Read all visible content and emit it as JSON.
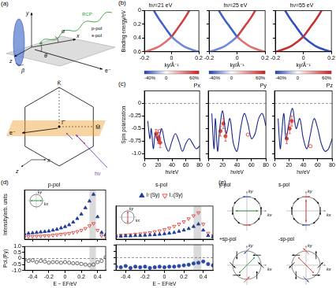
{
  "figure": {
    "panel_labels": [
      "(a)",
      "(b)",
      "(c)",
      "(d)",
      "(e)"
    ],
    "geometry_labels": {
      "y": "y",
      "z": "z",
      "x": "x",
      "theta": "θ",
      "beta": "β",
      "alpha": "α",
      "rcp": "RCP",
      "ppol": "p-pol",
      "spol": "s-pol",
      "electron": "e⁻"
    },
    "bz_labels": {
      "K": "K̄",
      "M": "M̄",
      "G": "Γ̄",
      "electron": "e⁻",
      "z": "z",
      "x": "x",
      "photon": "hν"
    },
    "colorbar": {
      "range": [
        -40,
        60
      ],
      "ticks": [
        {
          "value": -40,
          "label": "-40%"
        },
        0,
        {
          "value": 60,
          "label": "60%"
        }
      ]
    },
    "spin_textures": [
      "p-pol",
      "s-pol",
      "+sp-pol",
      "-sp-pol"
    ],
    "k_axes": {
      "ky": "ky",
      "kx": "kx"
    }
  },
  "chart_data": [
    {
      "type": "line",
      "title": "hν=21 eV",
      "xlabel": "ky/Å⁻¹",
      "ylabel": "Binding energy/eV",
      "xlim": [
        -0.2,
        0.2
      ],
      "xticks": [
        -0.2,
        0,
        0.2
      ],
      "ylim": [
        0.6,
        0
      ],
      "yticks": [
        0,
        0.2,
        0.4,
        0.6
      ],
      "series": [
        {
          "color": "#4060c8",
          "x": [
            -0.13,
            -0.1,
            -0.065,
            -0.03,
            0
          ],
          "values": [
            0,
            0.1,
            0.2,
            0.3,
            0.38
          ]
        },
        {
          "color": "#d04040",
          "x": [
            0.13,
            0.1,
            0.065,
            0.03,
            0
          ],
          "values": [
            0,
            0.1,
            0.2,
            0.3,
            0.38
          ]
        },
        {
          "color": "#e07070",
          "x": [
            0,
            -0.04,
            -0.09,
            -0.15,
            -0.2
          ],
          "values": [
            0.38,
            0.45,
            0.52,
            0.57,
            0.6
          ]
        },
        {
          "color": "#7088d8",
          "x": [
            0,
            0.04,
            0.09,
            0.15,
            0.2
          ],
          "values": [
            0.38,
            0.45,
            0.52,
            0.57,
            0.6
          ]
        }
      ]
    },
    {
      "type": "line",
      "title": "hν=25 eV",
      "xlabel": "ky/Å⁻¹",
      "tick_labels": "x",
      "xlim": [
        -0.2,
        0.2
      ],
      "xticks": [
        -0.2,
        0,
        0.2
      ],
      "ylim": [
        0.6,
        0
      ],
      "yticks": [
        0,
        0.2,
        0.4,
        0.6
      ],
      "series": [
        {
          "color": "#4060c8",
          "x": [
            -0.13,
            -0.1,
            -0.065,
            -0.03,
            0
          ],
          "values": [
            0,
            0.1,
            0.2,
            0.3,
            0.38
          ]
        },
        {
          "color": "#d04040",
          "x": [
            0.13,
            0.1,
            0.065,
            0.03,
            0
          ],
          "values": [
            0,
            0.1,
            0.2,
            0.3,
            0.38
          ]
        },
        {
          "color": "#7088d8",
          "x": [
            0,
            -0.04,
            -0.09,
            -0.15,
            -0.2
          ],
          "values": [
            0.38,
            0.45,
            0.52,
            0.57,
            0.6
          ]
        },
        {
          "color": "#e07070",
          "x": [
            0,
            0.04,
            0.09,
            0.15,
            0.2
          ],
          "values": [
            0.38,
            0.45,
            0.52,
            0.57,
            0.6
          ]
        }
      ]
    },
    {
      "type": "line",
      "title": "hν=55 eV",
      "xlabel": "ky/Å⁻¹",
      "tick_labels": "x",
      "xlim": [
        -0.2,
        0.2
      ],
      "xticks": [
        -0.2,
        0,
        0.2
      ],
      "ylim": [
        0.6,
        0
      ],
      "yticks": [
        0,
        0.2,
        0.4,
        0.6
      ],
      "series": [
        {
          "color": "#3050c0",
          "x": [
            -0.13,
            -0.1,
            -0.065,
            -0.03,
            0
          ],
          "values": [
            0,
            0.1,
            0.2,
            0.3,
            0.38
          ]
        },
        {
          "color": "#c83030",
          "x": [
            0.13,
            0.1,
            0.065,
            0.03,
            0
          ],
          "values": [
            0,
            0.1,
            0.2,
            0.3,
            0.38
          ]
        },
        {
          "color": "#c83030",
          "x": [
            0,
            -0.04,
            -0.09,
            -0.15,
            -0.2
          ],
          "values": [
            0.38,
            0.45,
            0.52,
            0.57,
            0.6
          ]
        },
        {
          "color": "#3050c0",
          "x": [
            0,
            0.04,
            0.09,
            0.15,
            0.2
          ],
          "values": [
            0.38,
            0.45,
            0.52,
            0.57,
            0.6
          ]
        }
      ]
    },
    {
      "type": "line",
      "title": "Px",
      "xlabel": "hν/eV",
      "ylabel": "Spin polarization",
      "xlim": [
        0,
        80
      ],
      "xticks": [
        0,
        20,
        40,
        60,
        80
      ],
      "ylim": [
        -1.1,
        0.25
      ],
      "yticks": [
        {
          "value": -1,
          "label": "-1.0"
        },
        -0.75,
        -0.5,
        -0.25,
        0
      ],
      "reference_line": 0,
      "series": [
        {
          "type": "line",
          "color": "#1c2a8c",
          "x": [
            5,
            8,
            10,
            13,
            16,
            20,
            25,
            30,
            35,
            40,
            45,
            50,
            55,
            60,
            65,
            70,
            75,
            80
          ],
          "values": [
            -0.35,
            -0.7,
            -0.5,
            -0.9,
            -0.6,
            -0.75,
            -0.5,
            -0.8,
            -0.95,
            -0.75,
            -0.6,
            -0.75,
            -0.95,
            -0.8,
            -0.7,
            -0.8,
            -0.9,
            -0.85
          ]
        },
        {
          "type": "scatter",
          "marker": "circle",
          "color": "#e0413a",
          "x": [
            17,
            20,
            21,
            23
          ],
          "values": [
            -0.6,
            -0.68,
            -0.72,
            -0.78
          ],
          "errors": [
            0.08,
            0.1,
            0.08,
            0.1
          ]
        },
        {
          "type": "scatter",
          "marker": "open_circle",
          "color": "#e0413a",
          "x": [
            22
          ],
          "values": [
            -0.55
          ]
        }
      ]
    },
    {
      "type": "line",
      "title": "Py",
      "xlabel": "hν/eV",
      "tick_labels": "x",
      "xlim": [
        0,
        80
      ],
      "xticks": [
        0,
        20,
        40,
        60,
        80
      ],
      "ylim": [
        -1.1,
        0.25
      ],
      "yticks": [
        {
          "value": -1,
          "label": "-1.0"
        },
        -0.75,
        -0.5,
        -0.25,
        0
      ],
      "reference_line": 0,
      "series": [
        {
          "type": "line",
          "color": "#1c2a8c",
          "x": [
            5,
            8,
            10,
            13,
            16,
            20,
            25,
            30,
            35,
            40,
            45,
            50,
            55,
            60,
            65,
            70,
            75,
            80
          ],
          "values": [
            -0.2,
            -0.9,
            -0.3,
            -0.95,
            -0.5,
            -0.15,
            -0.6,
            -0.3,
            -0.8,
            -0.95,
            -0.5,
            -0.2,
            -0.4,
            -0.7,
            -0.6,
            -0.3,
            -0.2,
            -0.45
          ]
        },
        {
          "type": "scatter",
          "marker": "circle",
          "color": "#e0413a",
          "x": [
            17,
            21,
            24
          ],
          "values": [
            -0.55,
            -0.4,
            -0.65
          ],
          "errors": [
            0.1,
            0.1,
            0.1
          ]
        },
        {
          "type": "scatter",
          "marker": "open_circle",
          "color": "#e0413a",
          "x": [
            55
          ],
          "values": [
            -0.62
          ]
        }
      ]
    },
    {
      "type": "line",
      "title": "Pz",
      "xlabel": "hν/eV",
      "tick_labels": "x",
      "xlim": [
        0,
        80
      ],
      "xticks": [
        0,
        20,
        40,
        60,
        80
      ],
      "ylim": [
        -1.1,
        0.25
      ],
      "yticks": [
        {
          "value": -1,
          "label": "-1.0"
        },
        -0.75,
        -0.5,
        -0.25,
        0
      ],
      "reference_line": 0,
      "series": [
        {
          "type": "line",
          "color": "#1c2a8c",
          "x": [
            5,
            8,
            10,
            13,
            16,
            20,
            25,
            30,
            35,
            40,
            45,
            50,
            55,
            60,
            65,
            70,
            75,
            80
          ],
          "values": [
            -0.3,
            -0.9,
            -0.6,
            -0.2,
            -0.7,
            -0.4,
            -0.1,
            -0.5,
            -0.3,
            -0.7,
            -0.9,
            -0.6,
            -0.3,
            -0.5,
            -0.8,
            -0.95,
            -0.9,
            -0.7
          ]
        },
        {
          "type": "scatter",
          "marker": "circle",
          "color": "#e0413a",
          "x": [
            17,
            21,
            24
          ],
          "values": [
            -0.7,
            -0.5,
            -0.35
          ],
          "errors": [
            0.1,
            0.1,
            0.1
          ]
        },
        {
          "type": "scatter",
          "marker": "open_circle",
          "color": "#e0413a",
          "x": [
            50
          ],
          "values": [
            -0.85
          ]
        }
      ]
    },
    {
      "type": "scatter",
      "title": "p-pol",
      "ylabel": "Intensity/arb. units",
      "tick_labels": false,
      "xlim": [
        -0.5,
        0.5
      ],
      "xticks": [
        -0.4,
        -0.2,
        0,
        0.2,
        0.4
      ],
      "ylim": [
        0,
        1.1
      ],
      "highlight": [
        0.3,
        0.38
      ],
      "x": [
        -0.5,
        -0.45,
        -0.4,
        -0.35,
        -0.3,
        -0.25,
        -0.2,
        -0.15,
        -0.1,
        -0.05,
        0,
        0.05,
        0.1,
        0.15,
        0.2,
        0.25,
        0.3,
        0.35,
        0.4,
        0.45,
        0.5
      ],
      "series": [
        {
          "color": "#1f3d99",
          "marker": "triangle",
          "values": [
            0.12,
            0.13,
            0.14,
            0.15,
            0.16,
            0.17,
            0.18,
            0.2,
            0.22,
            0.25,
            0.28,
            0.32,
            0.38,
            0.46,
            0.56,
            0.7,
            0.85,
            1.0,
            0.5,
            0.15,
            0.1
          ]
        },
        {
          "color": "#e0413a",
          "marker": "triangle_down_open",
          "values": [
            0.05,
            0.06,
            0.06,
            0.07,
            0.07,
            0.08,
            0.08,
            0.09,
            0.1,
            0.11,
            0.12,
            0.13,
            0.15,
            0.17,
            0.2,
            0.24,
            0.3,
            0.35,
            0.2,
            0.08,
            0.06
          ]
        }
      ]
    },
    {
      "type": "scatter",
      "xlabel": "E − EF/eV",
      "ylabel": "Pol.(Py)",
      "xlim": [
        -0.5,
        0.5
      ],
      "xticks": [
        -0.4,
        -0.2,
        0,
        0.2,
        0.4
      ],
      "ylim": [
        -1,
        1
      ],
      "yticks": [
        {
          "value": -1,
          "label": "-1.0"
        },
        -0.5,
        0,
        0.5,
        {
          "value": 1,
          "label": "1.0"
        }
      ],
      "reference_line": 0,
      "highlight": [
        0.3,
        0.38
      ],
      "x": [
        -0.5,
        -0.45,
        -0.4,
        -0.35,
        -0.3,
        -0.25,
        -0.2,
        -0.15,
        -0.1,
        -0.05,
        0,
        0.05,
        0.1,
        0.15,
        0.2,
        0.25,
        0.3,
        0.35,
        0.4,
        0.45,
        0.5
      ],
      "series": [
        {
          "color": "#555555",
          "marker": "open_circle",
          "values": [
            -0.1,
            -0.2,
            -0.15,
            -0.3,
            -0.2,
            -0.25,
            -0.35,
            -0.3,
            -0.3,
            -0.35,
            -0.3,
            -0.35,
            -0.4,
            -0.4,
            -0.45,
            -0.5,
            -0.55,
            -0.5,
            -0.3,
            -0.2,
            0.1
          ]
        }
      ]
    },
    {
      "type": "scatter",
      "title": "s-pol",
      "tick_labels": false,
      "legend": "top",
      "xlim": [
        -0.5,
        0.5
      ],
      "xticks": [
        -0.4,
        -0.2,
        0,
        0.2,
        0.4
      ],
      "ylim": [
        0,
        1.1
      ],
      "highlight": [
        0.3,
        0.38
      ],
      "x": [
        -0.5,
        -0.45,
        -0.4,
        -0.35,
        -0.3,
        -0.25,
        -0.2,
        -0.15,
        -0.1,
        -0.05,
        0,
        0.05,
        0.1,
        0.15,
        0.2,
        0.25,
        0.3,
        0.35,
        0.4,
        0.45,
        0.5
      ],
      "series": [
        {
          "name": "I↑(Sy)",
          "color": "#1f3d99",
          "marker": "triangle",
          "values": [
            0.1,
            0.1,
            0.11,
            0.11,
            0.12,
            0.12,
            0.13,
            0.14,
            0.15,
            0.16,
            0.18,
            0.2,
            0.22,
            0.26,
            0.3,
            0.35,
            0.42,
            0.5,
            0.3,
            0.12,
            0.08
          ]
        },
        {
          "name": "I↓(Sy)",
          "color": "#e0413a",
          "marker": "triangle_down_open",
          "values": [
            0.12,
            0.13,
            0.14,
            0.15,
            0.17,
            0.18,
            0.2,
            0.22,
            0.25,
            0.28,
            0.32,
            0.37,
            0.43,
            0.5,
            0.58,
            0.68,
            0.78,
            0.88,
            0.5,
            0.2,
            0.12
          ]
        }
      ]
    },
    {
      "type": "scatter",
      "xlabel": "E − EF/eV",
      "tick_labels": "x",
      "xlim": [
        -0.5,
        0.5
      ],
      "xticks": [
        -0.4,
        -0.2,
        0,
        0.2,
        0.4
      ],
      "ylim": [
        -1,
        1
      ],
      "yticks": [
        {
          "value": -1,
          "label": "-1.0"
        },
        -0.5,
        0,
        0.5,
        {
          "value": 1,
          "label": "1.0"
        }
      ],
      "reference_line": 0,
      "highlight": [
        0.3,
        0.38
      ],
      "x": [
        -0.5,
        -0.45,
        -0.4,
        -0.35,
        -0.3,
        -0.25,
        -0.2,
        -0.15,
        -0.1,
        -0.05,
        0,
        0.05,
        0.1,
        0.15,
        0.2,
        0.25,
        0.3,
        0.35,
        0.4,
        0.45,
        0.5
      ],
      "series": [
        {
          "color": "#2a4aa8",
          "marker": "circle",
          "values": [
            -0.7,
            -0.75,
            -0.65,
            -0.8,
            -0.7,
            -0.75,
            -0.7,
            -0.8,
            -0.75,
            -0.7,
            -0.75,
            -0.7,
            -0.7,
            -0.65,
            -0.6,
            -0.55,
            -0.45,
            -0.4,
            -0.3,
            -0.5,
            -0.6
          ]
        }
      ]
    }
  ]
}
